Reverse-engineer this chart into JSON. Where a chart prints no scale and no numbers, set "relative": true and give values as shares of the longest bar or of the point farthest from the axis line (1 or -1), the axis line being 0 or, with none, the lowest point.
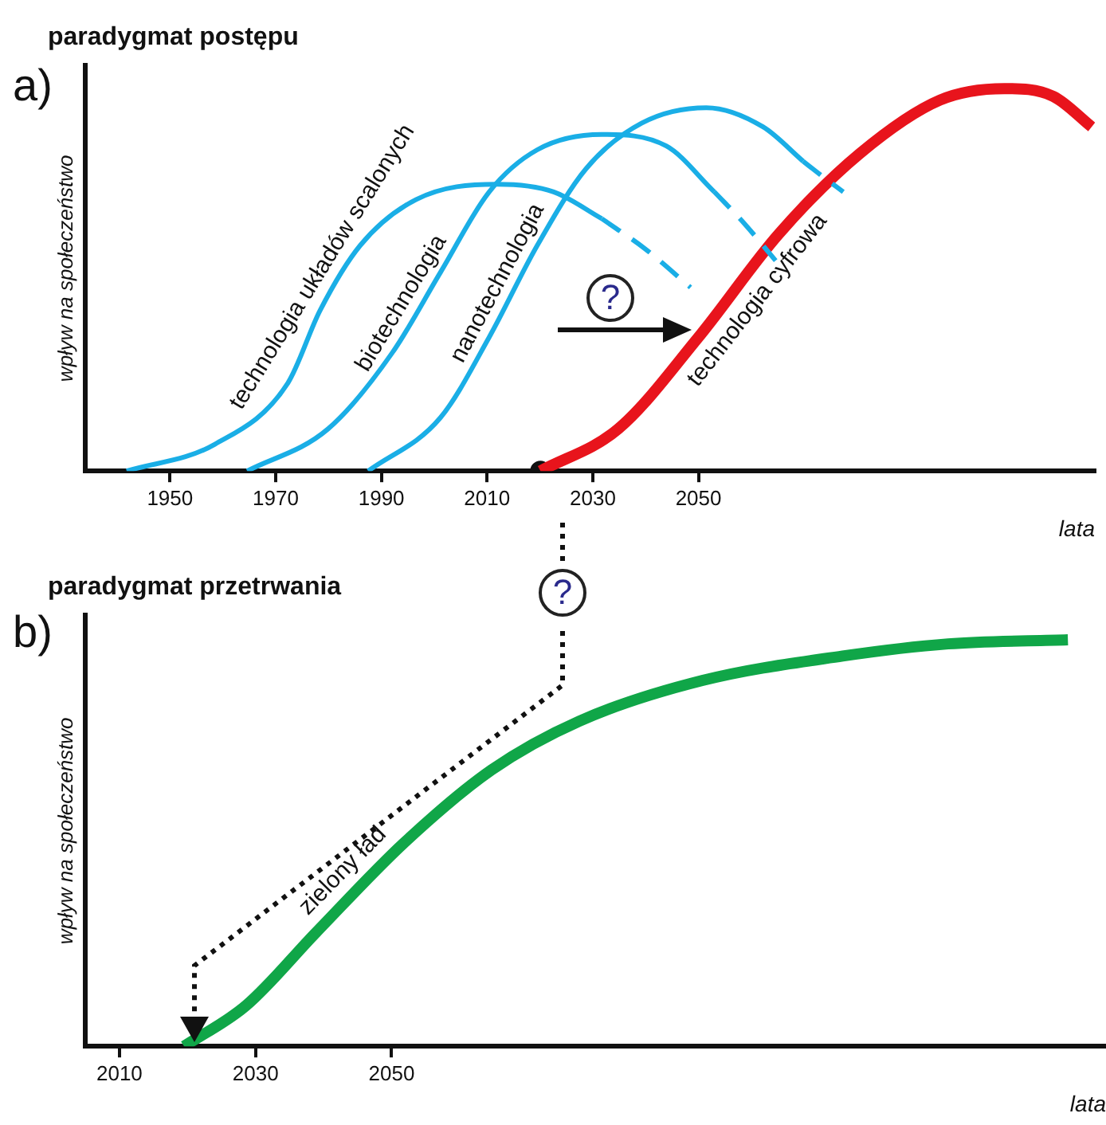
{
  "chart_data": [
    {
      "type": "line",
      "title": "paradygmat postępu",
      "xlabel": "lata",
      "ylabel": "wpływ na społeczeństwo",
      "relative": true,
      "marker": "none",
      "xlim": [
        1934,
        2125
      ],
      "xticks": [
        1950,
        1970,
        1990,
        2010,
        2030,
        2050
      ],
      "annotations": [
        "a)",
        "?",
        "?"
      ],
      "series": [
        {
          "name": "technologia układów scalonych",
          "color": "#1aaee6",
          "x": [
            1941.8,
            1958.5,
            1972.3,
            1978.4,
            1986.0,
            1996.6,
            2011.9,
            2022.6,
            2031.7
          ],
          "values": [
            0,
            0.07,
            0.23,
            0.42,
            0.59,
            0.71,
            0.75,
            0.73,
            0.66
          ]
        },
        {
          "color": "#1aaee6",
          "line_style": "dashed",
          "x": [
            2031.7,
            2040,
            2048.5
          ],
          "values": [
            0.66,
            0.58,
            0.48
          ]
        },
        {
          "name": "biotechnologia",
          "color": "#1aaee6",
          "x": [
            1964.6,
            1979.9,
            1992.1,
            2001.2,
            2010.4,
            2019.5,
            2031.7,
            2043.9,
            2053.0
          ],
          "values": [
            0,
            0.11,
            0.31,
            0.52,
            0.73,
            0.84,
            0.88,
            0.85,
            0.73
          ]
        },
        {
          "color": "#1aaee6",
          "line_style": "dashed",
          "x": [
            2053.0,
            2058.5,
            2064.6
          ],
          "values": [
            0.73,
            0.65,
            0.55
          ]
        },
        {
          "name": "nanotechnologia",
          "color": "#1aaee6",
          "x": [
            1987.5,
            2001.2,
            2010.4,
            2019.5,
            2028.7,
            2039.3,
            2051.5,
            2062.2,
            2069.8
          ],
          "values": [
            0,
            0.14,
            0.35,
            0.59,
            0.79,
            0.91,
            0.95,
            0.9,
            0.81
          ]
        },
        {
          "color": "#1aaee6",
          "line_style": "dashed",
          "x": [
            2069.8,
            2073.5,
            2077.4
          ],
          "values": [
            0.81,
            0.77,
            0.73
          ]
        },
        {
          "name": "technologia cyfrowa",
          "color": "#e8141c",
          "x": [
            2020.1,
            2034.8,
            2050.0,
            2065.2,
            2080.5,
            2095.7,
            2107.9,
            2117.1,
            2124.4
          ],
          "values": [
            0,
            0.11,
            0.35,
            0.62,
            0.83,
            0.97,
            1.0,
            0.98,
            0.9
          ]
        },
        {
          "type": "scatter",
          "marker": "circle",
          "color": "#111111",
          "x": [
            2020.1
          ],
          "values": [
            0
          ]
        }
      ]
    },
    {
      "type": "line",
      "title": "paradygmat przetrwania",
      "xlabel": "lata",
      "ylabel": "wpływ na społeczeństwo",
      "relative": true,
      "marker": "none",
      "xlim": [
        2005,
        2155
      ],
      "xticks": [
        2010,
        2030,
        2050
      ],
      "annotations": [
        "b)"
      ],
      "series": [
        {
          "name": "zielony ład",
          "color": "#10a648",
          "x": [
            2019.5,
            2028.6,
            2038.9,
            2051.8,
            2064.7,
            2077.6,
            2095.7,
            2116.3,
            2131.8,
            2149.4
          ],
          "values": [
            0,
            0.1,
            0.28,
            0.5,
            0.68,
            0.8,
            0.9,
            0.96,
            0.99,
            1
          ]
        }
      ]
    }
  ]
}
